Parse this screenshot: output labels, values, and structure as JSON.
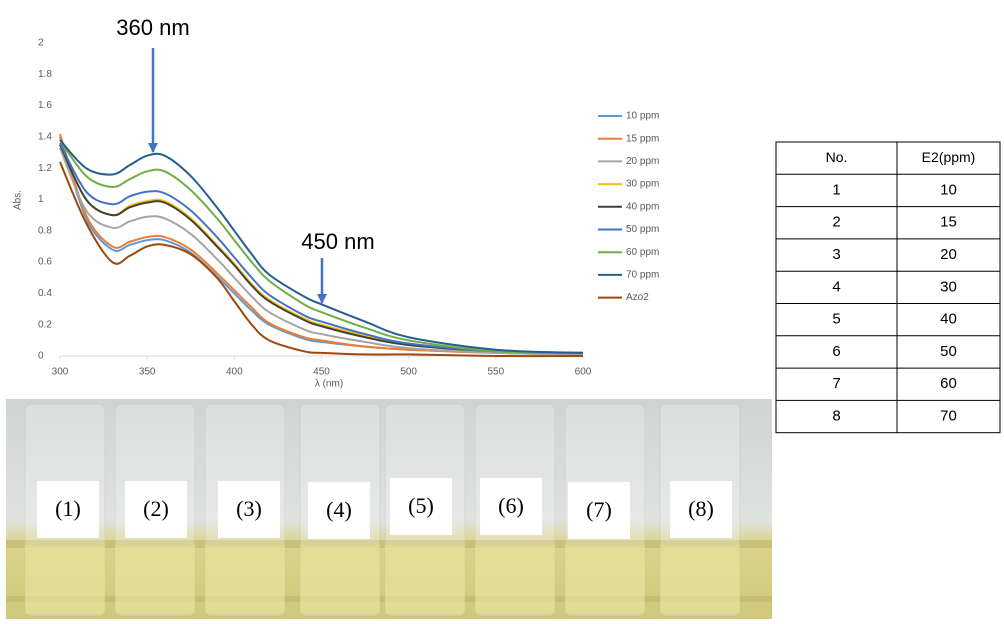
{
  "chart_data": {
    "type": "line",
    "x_label": "λ (nm)",
    "y_label": "Abs.",
    "annotations": [
      "360 nm",
      "450 nm"
    ],
    "x": [
      300,
      315,
      330,
      340,
      350,
      360,
      375,
      390,
      400,
      410,
      420,
      440,
      450,
      475,
      500,
      550,
      600
    ],
    "xlim": [
      300,
      600
    ],
    "xticks": [
      300,
      350,
      400,
      450,
      500,
      550,
      600
    ],
    "ylim": [
      0,
      2
    ],
    "yticks": [
      0,
      0.2,
      0.4,
      0.6,
      0.8,
      1,
      1.2,
      1.4,
      1.6,
      1.8,
      2
    ],
    "grid": false,
    "legend": "right",
    "series": [
      {
        "name": "10 ppm",
        "color": "#5b9bd5",
        "values": [
          1.4,
          0.88,
          0.68,
          0.71,
          0.74,
          0.74,
          0.66,
          0.51,
          0.4,
          0.29,
          0.2,
          0.11,
          0.09,
          0.06,
          0.04,
          0.02,
          0.01
        ]
      },
      {
        "name": "15 ppm",
        "color": "#ed7d31",
        "values": [
          1.42,
          0.9,
          0.7,
          0.73,
          0.76,
          0.76,
          0.68,
          0.53,
          0.42,
          0.31,
          0.21,
          0.12,
          0.1,
          0.06,
          0.04,
          0.02,
          0.01
        ]
      },
      {
        "name": "20 ppm",
        "color": "#a5a5a5",
        "values": [
          1.33,
          0.93,
          0.82,
          0.86,
          0.89,
          0.88,
          0.78,
          0.62,
          0.5,
          0.38,
          0.28,
          0.17,
          0.14,
          0.09,
          0.05,
          0.02,
          0.01
        ]
      },
      {
        "name": "30 ppm",
        "color": "#ffc000",
        "values": [
          1.35,
          1.0,
          0.9,
          0.96,
          0.99,
          0.99,
          0.88,
          0.71,
          0.59,
          0.46,
          0.36,
          0.24,
          0.2,
          0.13,
          0.07,
          0.03,
          0.02
        ]
      },
      {
        "name": "40 ppm",
        "color": "#404040",
        "values": [
          1.35,
          1.0,
          0.9,
          0.95,
          0.98,
          0.98,
          0.87,
          0.7,
          0.58,
          0.45,
          0.35,
          0.23,
          0.19,
          0.12,
          0.07,
          0.03,
          0.02
        ]
      },
      {
        "name": "50 ppm",
        "color": "#4472c4",
        "values": [
          1.36,
          1.05,
          0.97,
          1.02,
          1.05,
          1.04,
          0.93,
          0.76,
          0.63,
          0.5,
          0.39,
          0.26,
          0.22,
          0.14,
          0.08,
          0.03,
          0.02
        ]
      },
      {
        "name": "60 ppm",
        "color": "#70ad47",
        "values": [
          1.38,
          1.15,
          1.08,
          1.13,
          1.18,
          1.18,
          1.06,
          0.88,
          0.74,
          0.6,
          0.48,
          0.33,
          0.28,
          0.18,
          0.1,
          0.03,
          0.02
        ]
      },
      {
        "name": "70 ppm",
        "color": "#255e91",
        "values": [
          1.38,
          1.2,
          1.16,
          1.22,
          1.28,
          1.28,
          1.15,
          0.95,
          0.8,
          0.65,
          0.52,
          0.38,
          0.33,
          0.22,
          0.12,
          0.04,
          0.02
        ]
      },
      {
        "name": "Azo2",
        "color": "#9e480e",
        "values": [
          1.24,
          0.85,
          0.6,
          0.64,
          0.7,
          0.71,
          0.65,
          0.5,
          0.35,
          0.2,
          0.1,
          0.03,
          0.02,
          0.01,
          0.01,
          0,
          0
        ]
      }
    ]
  },
  "table": {
    "header": [
      "No.",
      "E2(ppm)"
    ],
    "rows": [
      [
        1,
        10
      ],
      [
        2,
        15
      ],
      [
        3,
        20
      ],
      [
        4,
        30
      ],
      [
        5,
        40
      ],
      [
        6,
        50
      ],
      [
        7,
        60
      ],
      [
        8,
        70
      ]
    ]
  },
  "photo": {
    "labels": [
      "(1)",
      "(2)",
      "(3)",
      "(4)",
      "(5)",
      "(6)",
      "(7)",
      "(8)"
    ]
  }
}
